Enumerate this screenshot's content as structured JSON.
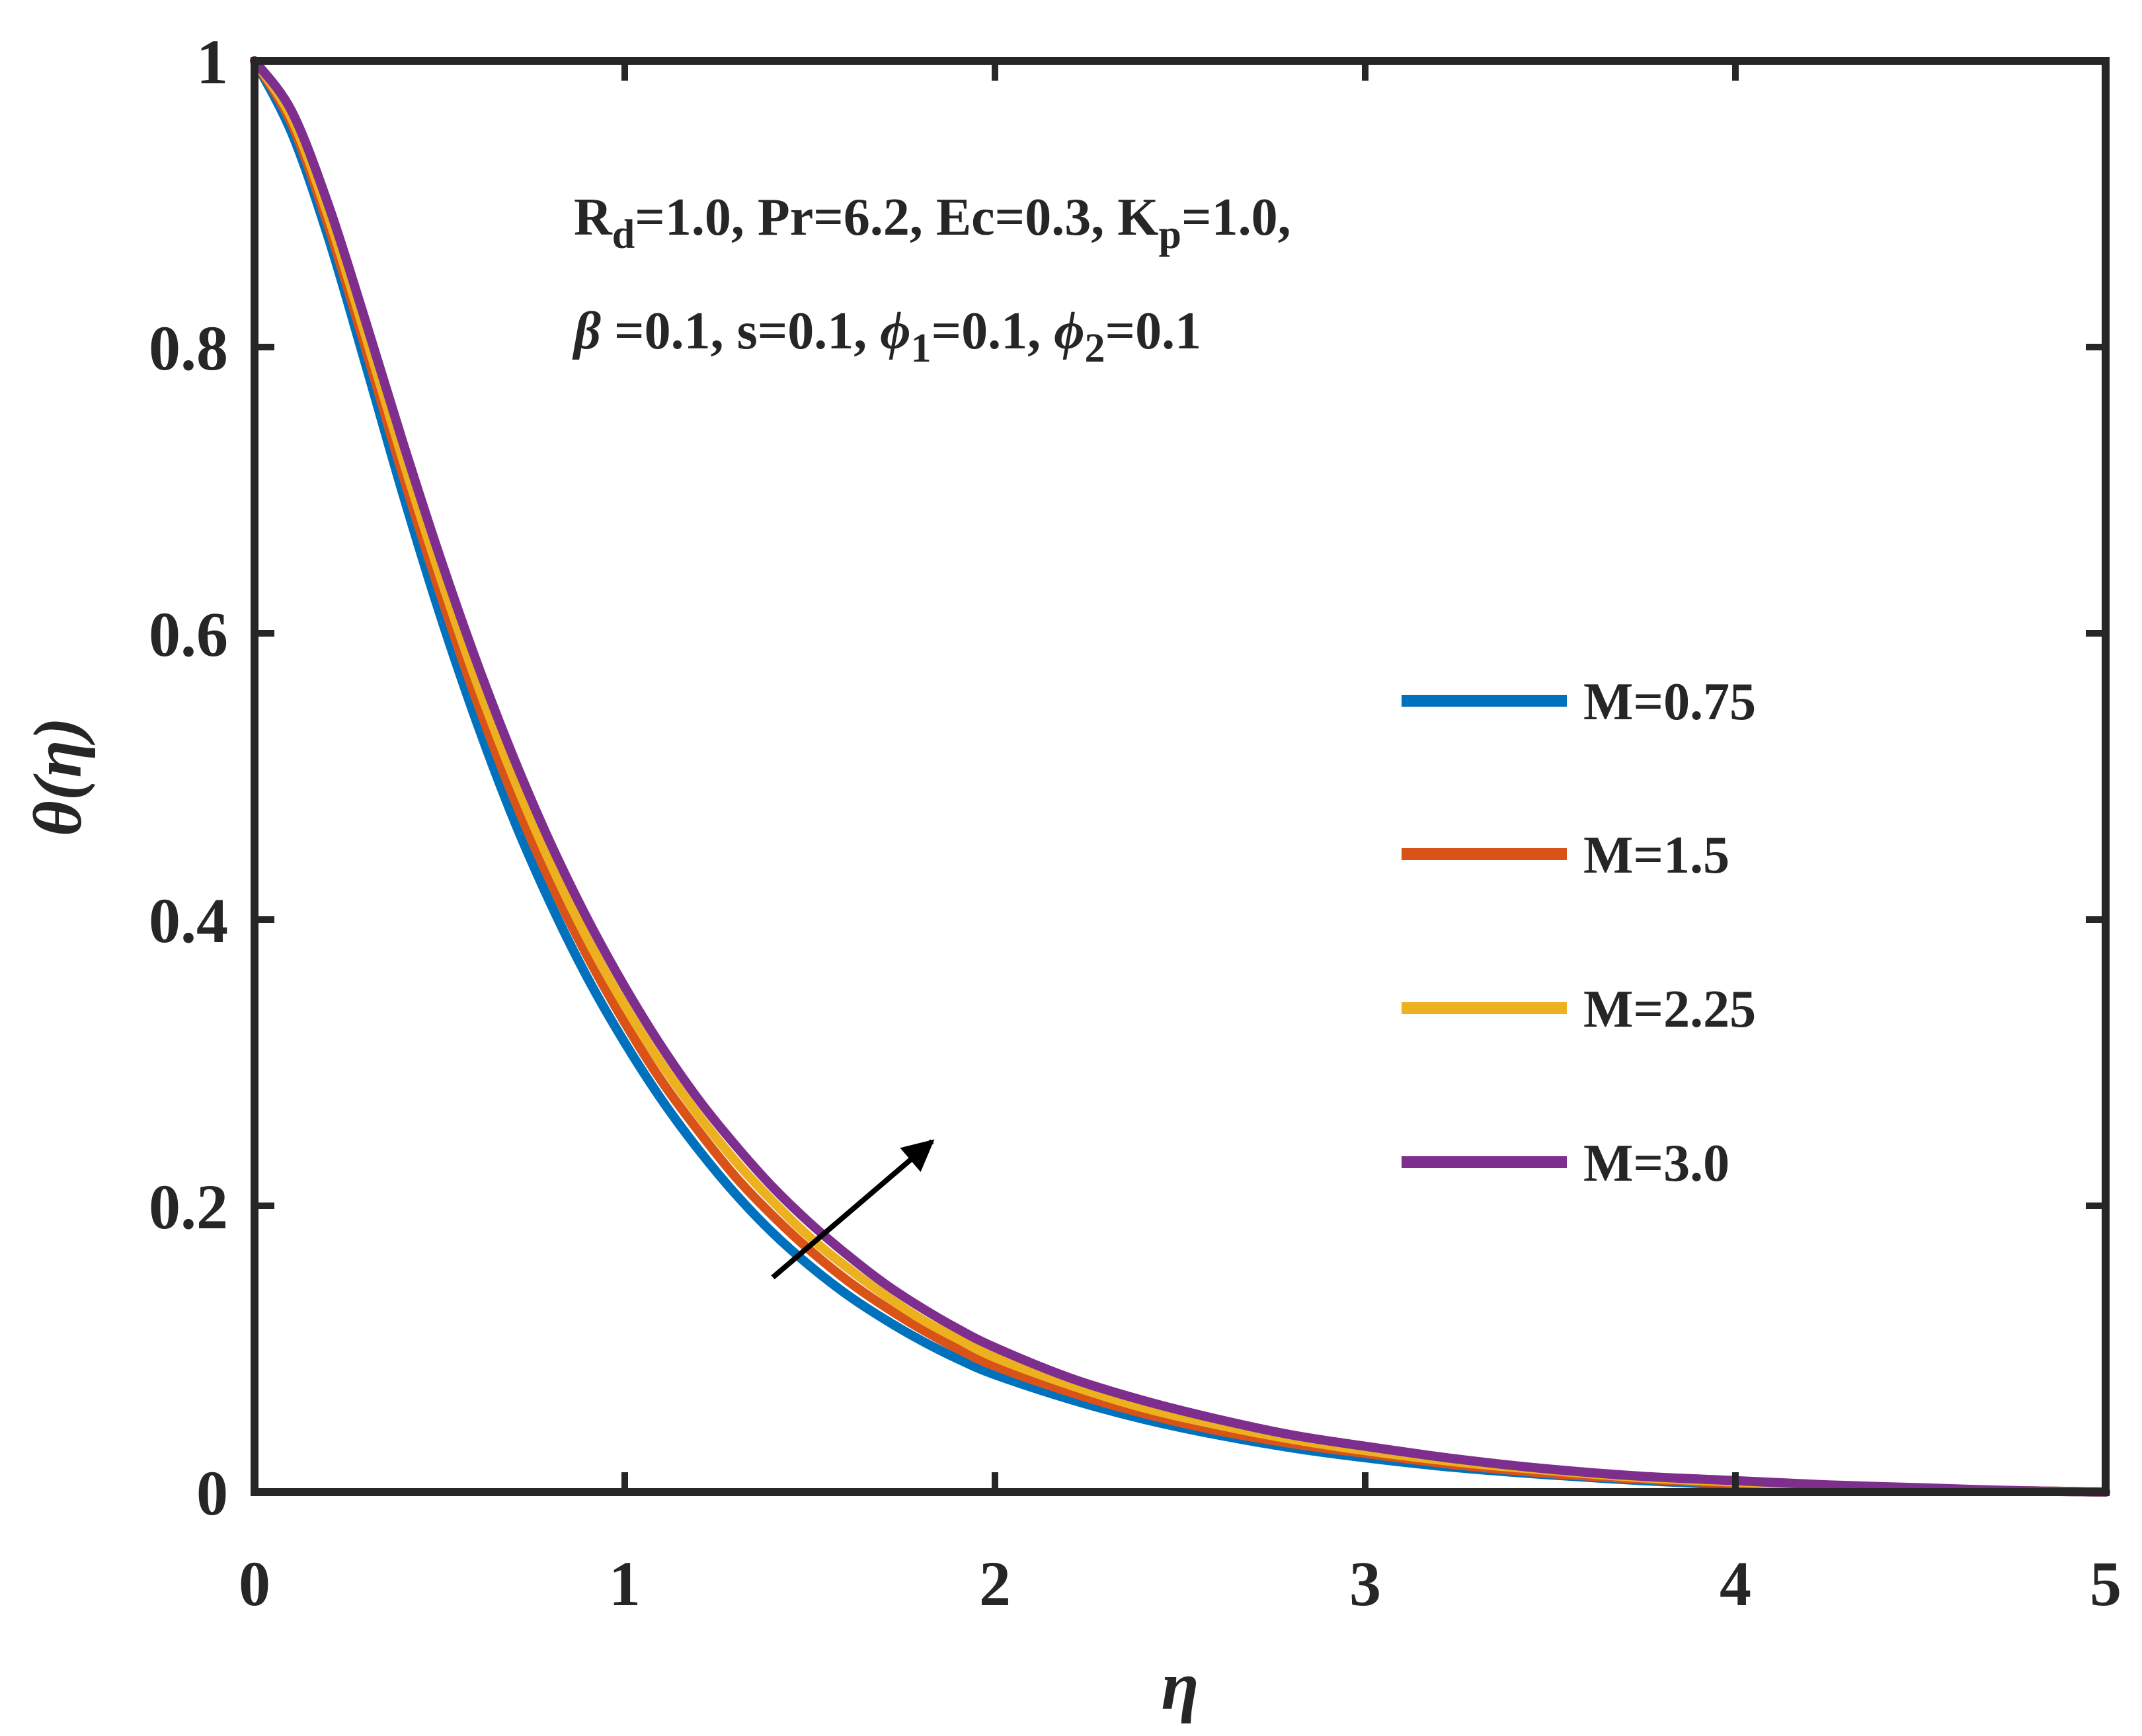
{
  "chart_data": {
    "type": "line",
    "xlabel": "η",
    "ylabel": "θ(η)",
    "xlim": [
      0,
      5
    ],
    "ylim": [
      0,
      1
    ],
    "xticks": [
      "0",
      "1",
      "2",
      "3",
      "4",
      "5"
    ],
    "yticks": [
      "0",
      "0.2",
      "0.4",
      "0.6",
      "0.8",
      "1"
    ],
    "legend_position": "right-center",
    "x": [
      0,
      0.1,
      0.2,
      0.3,
      0.4,
      0.5,
      0.6,
      0.7,
      0.8,
      0.9,
      1.0,
      1.1,
      1.2,
      1.3,
      1.4,
      1.5,
      1.6,
      1.7,
      1.8,
      1.9,
      2.0,
      2.2,
      2.4,
      2.6,
      2.8,
      3.0,
      3.25,
      3.5,
      3.75,
      4.0,
      4.25,
      4.5,
      4.75,
      5.0
    ],
    "series": [
      {
        "name": "M=0.75",
        "color": "#0072BD",
        "values": [
          1.0,
          0.95,
          0.876,
          0.788,
          0.698,
          0.614,
          0.538,
          0.47,
          0.411,
          0.359,
          0.314,
          0.274,
          0.239,
          0.208,
          0.181,
          0.158,
          0.138,
          0.121,
          0.106,
          0.093,
          0.082,
          0.065,
          0.051,
          0.04,
          0.031,
          0.024,
          0.017,
          0.012,
          0.008,
          0.005,
          0.003,
          0.002,
          0.001,
          0.0
        ]
      },
      {
        "name": "M=1.5",
        "color": "#D95319",
        "values": [
          1.0,
          0.956,
          0.884,
          0.799,
          0.711,
          0.629,
          0.553,
          0.485,
          0.426,
          0.374,
          0.328,
          0.287,
          0.252,
          0.22,
          0.193,
          0.169,
          0.148,
          0.13,
          0.114,
          0.1,
          0.088,
          0.07,
          0.055,
          0.043,
          0.034,
          0.027,
          0.019,
          0.013,
          0.009,
          0.006,
          0.004,
          0.002,
          0.001,
          0.0
        ]
      },
      {
        "name": "M=2.25",
        "color": "#EDB120",
        "values": [
          1.0,
          0.96,
          0.891,
          0.808,
          0.722,
          0.641,
          0.566,
          0.499,
          0.439,
          0.386,
          0.34,
          0.299,
          0.263,
          0.231,
          0.203,
          0.178,
          0.157,
          0.138,
          0.121,
          0.107,
          0.094,
          0.075,
          0.059,
          0.047,
          0.037,
          0.029,
          0.021,
          0.015,
          0.01,
          0.007,
          0.004,
          0.002,
          0.001,
          0.0
        ]
      },
      {
        "name": "M=3.0",
        "color": "#7E2F8E",
        "values": [
          1.0,
          0.965,
          0.899,
          0.818,
          0.734,
          0.654,
          0.58,
          0.513,
          0.453,
          0.4,
          0.353,
          0.311,
          0.274,
          0.242,
          0.213,
          0.188,
          0.166,
          0.146,
          0.129,
          0.114,
          0.101,
          0.08,
          0.064,
          0.051,
          0.04,
          0.032,
          0.023,
          0.016,
          0.011,
          0.008,
          0.005,
          0.003,
          0.001,
          0.0
        ]
      }
    ],
    "annotations": {
      "arrow": {
        "from": [
          1.4,
          0.15
        ],
        "to": [
          1.83,
          0.245
        ],
        "meaning": "increasing M"
      },
      "parameters_line1": [
        {
          "t": "R"
        },
        {
          "t": "d",
          "sub": true
        },
        {
          "t": "=1.0, Pr=6.2, Ec=0.3, K"
        },
        {
          "t": "p",
          "sub": true
        },
        {
          "t": "=1.0,"
        }
      ],
      "parameters_line2": [
        {
          "t": "β",
          "greek": true
        },
        {
          "t": " =0.1, s=0.1, "
        },
        {
          "t": "ϕ",
          "greek": true
        },
        {
          "t": "1",
          "sub": true
        },
        {
          "t": "=0.1, "
        },
        {
          "t": "ϕ",
          "greek": true
        },
        {
          "t": "2",
          "sub": true
        },
        {
          "t": "=0.1"
        }
      ]
    }
  }
}
